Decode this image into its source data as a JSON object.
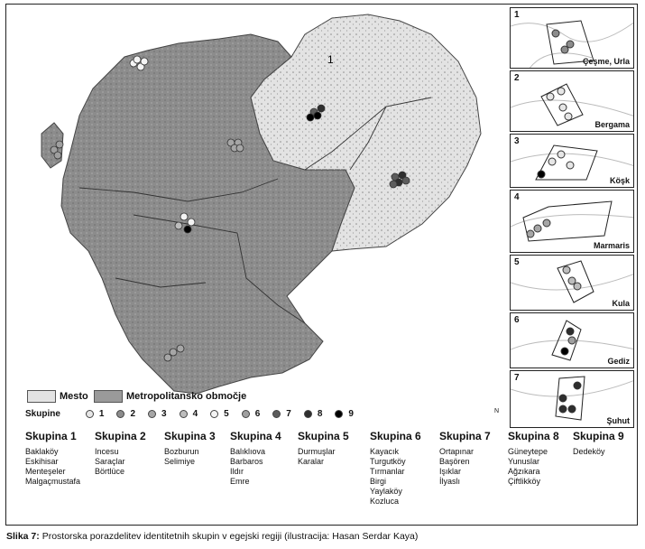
{
  "map": {
    "main_region_label": "1"
  },
  "insets": [
    {
      "number": "1",
      "label": "Çeşme, Urla"
    },
    {
      "number": "2",
      "label": "Bergama"
    },
    {
      "number": "3",
      "label": "Köşk"
    },
    {
      "number": "4",
      "label": "Marmaris"
    },
    {
      "number": "5",
      "label": "Kula"
    },
    {
      "number": "6",
      "label": "Gediz"
    },
    {
      "number": "7",
      "label": "Şuhut"
    }
  ],
  "legend": {
    "mesto_label": "Mesto",
    "mesto_color": "#e3e3e3",
    "metro_label": "Metropolitansko območje",
    "metro_color": "#9a9a9a",
    "skupine_label": "Skupine",
    "clusters": [
      {
        "label": "1",
        "color": "#e6e6e6"
      },
      {
        "label": "2",
        "color": "#8c8c8c"
      },
      {
        "label": "3",
        "color": "#a6a6a6"
      },
      {
        "label": "4",
        "color": "#bdbdbd"
      },
      {
        "label": "5",
        "color": "#f4f4f4"
      },
      {
        "label": "6",
        "color": "#9f9f9f"
      },
      {
        "label": "7",
        "color": "#5c5c5c"
      },
      {
        "label": "8",
        "color": "#2e2e2e"
      },
      {
        "label": "9",
        "color": "#000000"
      }
    ]
  },
  "groups": [
    {
      "title": "Skupina 1",
      "places": [
        "Baklaköy",
        "Eskihisar",
        "Menteşeler",
        "Malgaçmustafa"
      ]
    },
    {
      "title": "Skupina 2",
      "places": [
        "Incesu",
        "Saraçlar",
        "Börtlüce"
      ]
    },
    {
      "title": "Skupina 3",
      "places": [
        "Bozburun",
        "Selimiye"
      ]
    },
    {
      "title": "Skupina 4",
      "places": [
        "Balıklıova",
        "Barbaros",
        "Ildır",
        "Emre"
      ]
    },
    {
      "title": "Skupina 5",
      "places": [
        "Durmuşlar",
        "Karalar"
      ]
    },
    {
      "title": "Skupina 6",
      "places": [
        "Kayacık",
        "Turgutköy",
        "Tırmanlar",
        "Birgi",
        "Yaylaköy",
        "Kozluca"
      ]
    },
    {
      "title": "Skupina 7",
      "places": [
        "Ortapınar",
        "Başören",
        "Işıklar",
        "İlyaslı"
      ]
    },
    {
      "title": "Skupina 8",
      "places": [
        "Güneytepe",
        "Yunuslar",
        "Ağzıkara",
        "Çiftlikköy"
      ]
    },
    {
      "title": "Skupina 9",
      "places": [
        "Dedeköy"
      ]
    }
  ],
  "north_label": "N",
  "caption": {
    "prefix": "Slika 7:",
    "text": " Prostorska porazdelitev identitetnih skupin v egejski regiji (ilustracija: Hasan Serdar Kaya)"
  }
}
